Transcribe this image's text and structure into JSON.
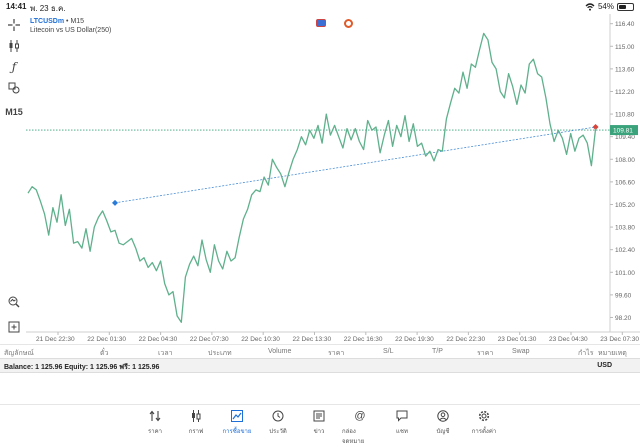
{
  "status": {
    "time": "14:41",
    "date": "พ. 23 ธ.ค.",
    "battery": "54%",
    "battery_level": 0.54
  },
  "chart_header": {
    "symbol": "LTCUSDm",
    "separator": "•",
    "timeframe": "M15",
    "description": "Litecoin vs US Dollar(250)"
  },
  "toolbar": {
    "timeframe_label": "M15"
  },
  "chart_data": {
    "type": "line",
    "current_price_label": "109.81",
    "y_ticks": [
      "116.40",
      "115.00",
      "113.60",
      "112.20",
      "110.80",
      "109.40",
      "108.00",
      "106.60",
      "105.20",
      "103.80",
      "102.40",
      "101.00",
      "99.60",
      "98.20"
    ],
    "x_ticks": [
      "21 Dec 22:30",
      "22 Dec 01:30",
      "22 Dec 04:30",
      "22 Dec 07:30",
      "22 Dec 10:30",
      "22 Dec 13:30",
      "22 Dec 16:30",
      "22 Dec 19:30",
      "22 Dec 22:30",
      "23 Dec 01:30",
      "23 Dec 04:30",
      "23 Dec 07:30"
    ],
    "ylim": [
      97.3,
      117.0
    ],
    "xlim": [
      0,
      140
    ],
    "price_line": 109.81,
    "trendline": {
      "x": [
        21,
        137
      ],
      "y": [
        105.3,
        110.0
      ]
    },
    "x": [
      0,
      1,
      2,
      3,
      4,
      5,
      6,
      7,
      8,
      9,
      10,
      11,
      12,
      13,
      14,
      15,
      16,
      17,
      18,
      19,
      20,
      21,
      22,
      23,
      24,
      25,
      26,
      27,
      28,
      29,
      30,
      31,
      32,
      33,
      34,
      35,
      36,
      37,
      38,
      39,
      40,
      41,
      42,
      43,
      44,
      45,
      46,
      47,
      48,
      49,
      50,
      51,
      52,
      53,
      54,
      55,
      56,
      57,
      58,
      59,
      60,
      61,
      62,
      63,
      64,
      65,
      66,
      67,
      68,
      69,
      70,
      71,
      72,
      73,
      74,
      75,
      76,
      77,
      78,
      79,
      80,
      81,
      82,
      83,
      84,
      85,
      86,
      87,
      88,
      89,
      90,
      91,
      92,
      93,
      94,
      95,
      96,
      97,
      98,
      99,
      100,
      101,
      102,
      103,
      104,
      105,
      106,
      107,
      108,
      109,
      110,
      111,
      112,
      113,
      114,
      115,
      116,
      117,
      118,
      119,
      120,
      121,
      122,
      123,
      124,
      125,
      126,
      127,
      128,
      129,
      130,
      131,
      132,
      133,
      134,
      135,
      136,
      137
    ],
    "y": [
      105.9,
      106.3,
      106.1,
      105.4,
      104.6,
      103.3,
      105.0,
      104.1,
      105.8,
      103.9,
      104.9,
      102.8,
      102.9,
      102.5,
      103.7,
      102.3,
      103.8,
      104.4,
      104.8,
      104.2,
      103.5,
      103.6,
      102.8,
      102.7,
      102.9,
      103.1,
      102.5,
      101.7,
      101.9,
      101.3,
      101.6,
      101.1,
      101.7,
      100.3,
      99.6,
      99.8,
      98.3,
      97.9,
      100.7,
      101.5,
      102.0,
      101.4,
      103.0,
      101.8,
      101.0,
      102.7,
      101.7,
      101.2,
      102.3,
      101.7,
      101.9,
      103.2,
      104.3,
      104.9,
      105.8,
      106.1,
      106.0,
      106.9,
      106.4,
      108.0,
      107.5,
      107.1,
      106.3,
      107.2,
      108.0,
      108.6,
      109.4,
      108.9,
      109.8,
      109.3,
      110.1,
      109.0,
      110.8,
      109.5,
      110.1,
      109.4,
      108.7,
      109.9,
      109.2,
      109.9,
      109.1,
      108.6,
      110.4,
      109.8,
      110.0,
      108.4,
      109.5,
      110.4,
      108.8,
      110.1,
      109.4,
      110.7,
      109.1,
      110.2,
      108.8,
      109.0,
      108.2,
      108.5,
      107.9,
      108.6,
      108.5,
      110.5,
      111.5,
      112.4,
      112.1,
      113.4,
      112.4,
      113.9,
      113.7,
      114.8,
      115.8,
      115.4,
      114.0,
      113.6,
      112.2,
      111.8,
      113.3,
      112.5,
      111.4,
      112.6,
      112.1,
      113.9,
      114.2,
      113.3,
      113.1,
      111.8,
      110.2,
      109.1,
      109.8,
      109.3,
      108.3,
      109.6,
      108.5,
      109.3,
      109.5,
      109.0,
      107.6,
      109.9
    ]
  },
  "columns": {
    "symbol": "สัญลักษณ์",
    "ticket": "ตั๋ว",
    "time": "เวลา",
    "type": "ประเภท",
    "volume": "Volume",
    "price": "ราคา",
    "sl": "S/L",
    "tp": "T/P",
    "price2": "ราคา",
    "swap": "Swap",
    "profit": "กำไร",
    "comment": "หมายเหตุ"
  },
  "balance": {
    "text": "Balance: 1 125.96 Equity: 1 125.96 ฟรี: 1 125.96",
    "currency": "USD"
  },
  "tabs": [
    {
      "label": "ราคา",
      "icon": "quotes-arrows-icon"
    },
    {
      "label": "กราฟ",
      "icon": "candlestick-icon"
    },
    {
      "label": "การซื้อขาย",
      "icon": "trade-chart-icon"
    },
    {
      "label": "ประวัติ",
      "icon": "history-clock-icon"
    },
    {
      "label": "ข่าว",
      "icon": "news-icon"
    },
    {
      "label": "กล่องจดหมาย",
      "icon": "mailbox-at-icon"
    },
    {
      "label": "แชท",
      "icon": "chat-bubble-icon"
    },
    {
      "label": "บัญชี",
      "icon": "account-icon"
    },
    {
      "label": "การตั้งค่า",
      "icon": "settings-gear-icon"
    }
  ],
  "active_tab": "การซื้อขาย",
  "colors": {
    "line": "#5fb08c",
    "price_line": "#3aa37c",
    "accent": "#1e6fd8",
    "trendline": "#4a8fd6"
  }
}
